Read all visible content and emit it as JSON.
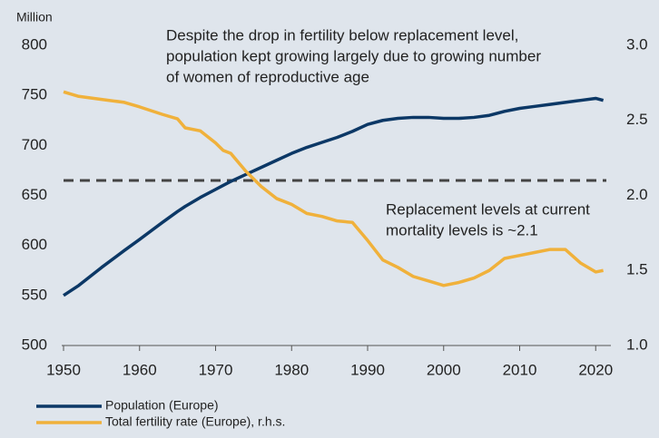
{
  "chart_data": {
    "type": "line",
    "y_label": "Million",
    "x": [
      1950,
      1952,
      1955,
      1958,
      1960,
      1963,
      1965,
      1966,
      1968,
      1970,
      1971,
      1972,
      1974,
      1976,
      1978,
      1980,
      1982,
      1984,
      1986,
      1988,
      1990,
      1992,
      1994,
      1996,
      1998,
      2000,
      2002,
      2004,
      2006,
      2008,
      2010,
      2012,
      2014,
      2016,
      2018,
      2020,
      2021
    ],
    "series": [
      {
        "name": "Population (Europe)",
        "color": "#0c3866",
        "axis": "y",
        "values": [
          550,
          560,
          578,
          595,
          606,
          623,
          634,
          639,
          648,
          656,
          660,
          664,
          671,
          678,
          685,
          692,
          698,
          703,
          708,
          714,
          721,
          725,
          727,
          728,
          728,
          727,
          727,
          728,
          730,
          734,
          737,
          739,
          741,
          743,
          745,
          747,
          745
        ]
      },
      {
        "name": "Total fertility rate (Europe), r.h.s.",
        "color": "#f0b13b",
        "axis": "y2",
        "values": [
          2.69,
          2.66,
          2.64,
          2.62,
          2.59,
          2.54,
          2.51,
          2.45,
          2.43,
          2.35,
          2.3,
          2.28,
          2.16,
          2.06,
          1.98,
          1.94,
          1.88,
          1.86,
          1.83,
          1.82,
          1.7,
          1.57,
          1.52,
          1.46,
          1.43,
          1.4,
          1.42,
          1.45,
          1.5,
          1.58,
          1.6,
          1.62,
          1.64,
          1.64,
          1.55,
          1.49,
          1.5
        ]
      }
    ],
    "reference_line": {
      "value": 2.1,
      "axis": "y2",
      "color": "#444444"
    },
    "annotations": [
      {
        "lines": [
          "Despite the drop in fertility below replacement level,",
          "population kept growing largely due to growing number",
          "of women of reproductive age"
        ]
      },
      {
        "lines": [
          "Replacement levels at current",
          "mortality levels is ~2.1"
        ]
      }
    ],
    "xlim": [
      1950,
      2022
    ],
    "xticks": [
      1950,
      1960,
      1970,
      1980,
      1990,
      2000,
      2010,
      2020
    ],
    "ylim": [
      500,
      800
    ],
    "yticks": [
      500,
      550,
      600,
      650,
      700,
      750,
      800
    ],
    "y2lim": [
      1,
      3
    ],
    "y2ticks": [
      {
        "value": 1,
        "label": "1.0"
      },
      1.5,
      {
        "value": 2,
        "label": "2.0"
      },
      2.5,
      {
        "value": 3,
        "label": "3.0"
      }
    ],
    "legend": "bottom-left"
  }
}
